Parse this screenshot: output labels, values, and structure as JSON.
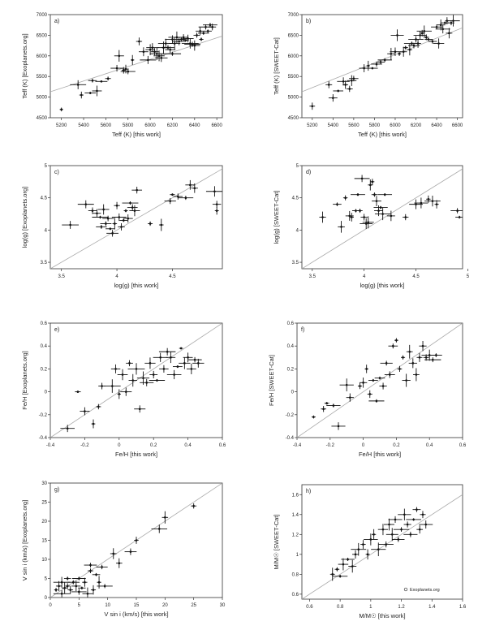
{
  "chart_data": [
    {
      "type": "scatter",
      "panel": "a)",
      "xlabel": "Teff (K) [this work]",
      "ylabel": "Teff (K) [Exoplanets.org]",
      "xlim": [
        5100,
        6650
      ],
      "ylim": [
        4500,
        7000
      ],
      "xticks": [
        5200,
        5400,
        5600,
        5800,
        6000,
        6200,
        6400,
        6600
      ],
      "yticks": [
        4500,
        5000,
        5500,
        6000,
        6500,
        7000
      ],
      "fit_line": [
        [
          5100,
          5130
        ],
        [
          6650,
          6480
        ]
      ],
      "points": [
        [
          5200,
          4700
        ],
        [
          5350,
          5300
        ],
        [
          5380,
          5050
        ],
        [
          5460,
          5100
        ],
        [
          5480,
          5400
        ],
        [
          5520,
          5150
        ],
        [
          5560,
          5380
        ],
        [
          5620,
          5450
        ],
        [
          5700,
          5700
        ],
        [
          5720,
          6000
        ],
        [
          5760,
          5650
        ],
        [
          5780,
          5680
        ],
        [
          5800,
          5620
        ],
        [
          5840,
          5900
        ],
        [
          5900,
          6350
        ],
        [
          5940,
          6100
        ],
        [
          5980,
          5900
        ],
        [
          6000,
          6150
        ],
        [
          6020,
          6200
        ],
        [
          6040,
          6100
        ],
        [
          6060,
          6050
        ],
        [
          6080,
          6000
        ],
        [
          6100,
          5950
        ],
        [
          6120,
          6200
        ],
        [
          6140,
          6300
        ],
        [
          6160,
          6200
        ],
        [
          6180,
          6150
        ],
        [
          6200,
          6050
        ],
        [
          6200,
          6400
        ],
        [
          6220,
          6300
        ],
        [
          6240,
          6450
        ],
        [
          6260,
          6350
        ],
        [
          6280,
          6400
        ],
        [
          6300,
          6450
        ],
        [
          6320,
          6380
        ],
        [
          6340,
          6420
        ],
        [
          6360,
          6300
        ],
        [
          6380,
          6280
        ],
        [
          6400,
          6250
        ],
        [
          6420,
          6500
        ],
        [
          6450,
          6600
        ],
        [
          6460,
          6400
        ],
        [
          6480,
          6550
        ],
        [
          6500,
          6700
        ],
        [
          6520,
          6600
        ],
        [
          6540,
          6750
        ],
        [
          6560,
          6700
        ]
      ]
    },
    {
      "type": "scatter",
      "panel": "b)",
      "xlabel": "Teff (K) [this work]",
      "ylabel": "Teff (K) [SWEET-Cat]",
      "xlim": [
        5100,
        6650
      ],
      "ylim": [
        4500,
        7000
      ],
      "xticks": [
        5200,
        5400,
        5600,
        5800,
        6000,
        6200,
        6400,
        6600
      ],
      "yticks": [
        4500,
        5000,
        5500,
        6000,
        6500,
        7000
      ],
      "fit_line": [
        [
          5100,
          5130
        ],
        [
          6650,
          6680
        ]
      ],
      "points": [
        [
          5200,
          4780
        ],
        [
          5360,
          5300
        ],
        [
          5400,
          4980
        ],
        [
          5450,
          5150
        ],
        [
          5500,
          5380
        ],
        [
          5520,
          5300
        ],
        [
          5560,
          5200
        ],
        [
          5580,
          5400
        ],
        [
          5600,
          5450
        ],
        [
          5700,
          5700
        ],
        [
          5740,
          5760
        ],
        [
          5780,
          5700
        ],
        [
          5820,
          5800
        ],
        [
          5860,
          5850
        ],
        [
          5900,
          5900
        ],
        [
          5960,
          6050
        ],
        [
          6000,
          6100
        ],
        [
          6020,
          6500
        ],
        [
          6040,
          6050
        ],
        [
          6080,
          6100
        ],
        [
          6100,
          6200
        ],
        [
          6140,
          6150
        ],
        [
          6160,
          6300
        ],
        [
          6180,
          6250
        ],
        [
          6200,
          6400
        ],
        [
          6220,
          6300
        ],
        [
          6240,
          6500
        ],
        [
          6260,
          6550
        ],
        [
          6280,
          6600
        ],
        [
          6300,
          6450
        ],
        [
          6320,
          6400
        ],
        [
          6360,
          6350
        ],
        [
          6400,
          6700
        ],
        [
          6420,
          6300
        ],
        [
          6440,
          6750
        ],
        [
          6460,
          6650
        ],
        [
          6480,
          6800
        ],
        [
          6500,
          6850
        ],
        [
          6520,
          6550
        ],
        [
          6540,
          6800
        ],
        [
          6560,
          6850
        ]
      ]
    },
    {
      "type": "scatter",
      "panel": "c)",
      "xlabel": "log(g) [this work]",
      "ylabel": "log(g) [Exoplanets.org]",
      "xlim": [
        3.4,
        4.95
      ],
      "ylim": [
        3.4,
        5.0
      ],
      "xticks": [
        3.5,
        4.0,
        4.5
      ],
      "yticks": [
        3.5,
        4.0,
        4.5,
        5.0
      ],
      "fit_line": [
        [
          3.4,
          3.4
        ],
        [
          4.95,
          4.95
        ]
      ],
      "points": [
        [
          3.58,
          4.08
        ],
        [
          3.72,
          4.4
        ],
        [
          3.78,
          4.3
        ],
        [
          3.82,
          4.26
        ],
        [
          3.85,
          4.2
        ],
        [
          3.86,
          4.05
        ],
        [
          3.88,
          4.32
        ],
        [
          3.9,
          4.1
        ],
        [
          3.92,
          4.18
        ],
        [
          3.94,
          4.02
        ],
        [
          3.96,
          3.95
        ],
        [
          3.98,
          4.1
        ],
        [
          4.0,
          4.38
        ],
        [
          4.02,
          4.2
        ],
        [
          4.04,
          4.05
        ],
        [
          4.06,
          4.15
        ],
        [
          4.08,
          4.3
        ],
        [
          4.1,
          4.18
        ],
        [
          4.12,
          4.42
        ],
        [
          4.14,
          4.35
        ],
        [
          4.16,
          4.3
        ],
        [
          4.18,
          4.62
        ],
        [
          4.3,
          4.1
        ],
        [
          4.4,
          4.08
        ],
        [
          4.48,
          4.45
        ],
        [
          4.5,
          4.55
        ],
        [
          4.55,
          4.52
        ],
        [
          4.62,
          4.5
        ],
        [
          4.66,
          4.7
        ],
        [
          4.7,
          4.65
        ],
        [
          4.88,
          4.6
        ],
        [
          4.9,
          4.4
        ],
        [
          4.9,
          4.3
        ]
      ]
    },
    {
      "type": "scatter",
      "panel": "d)",
      "xlabel": "log(g) [this work]",
      "ylabel": "log(g) [SWEET-Cat]",
      "xlim": [
        3.4,
        4.95
      ],
      "ylim": [
        3.4,
        5.0
      ],
      "xticks": [
        3.5,
        4.0,
        4.5,
        5.0
      ],
      "yticks": [
        3.5,
        4.0,
        4.5,
        5.0
      ],
      "fit_line": [
        [
          3.4,
          3.4
        ],
        [
          4.95,
          4.95
        ]
      ],
      "points": [
        [
          3.6,
          4.2
        ],
        [
          3.74,
          4.4
        ],
        [
          3.78,
          4.05
        ],
        [
          3.82,
          4.5
        ],
        [
          3.86,
          4.22
        ],
        [
          3.88,
          4.2
        ],
        [
          3.92,
          4.3
        ],
        [
          3.94,
          4.55
        ],
        [
          3.96,
          4.3
        ],
        [
          3.98,
          4.8
        ],
        [
          4.0,
          4.2
        ],
        [
          4.02,
          4.1
        ],
        [
          4.04,
          4.12
        ],
        [
          4.06,
          4.7
        ],
        [
          4.08,
          4.75
        ],
        [
          4.1,
          4.55
        ],
        [
          4.12,
          4.45
        ],
        [
          4.14,
          4.3
        ],
        [
          4.16,
          4.35
        ],
        [
          4.18,
          4.25
        ],
        [
          4.2,
          4.55
        ],
        [
          4.26,
          4.22
        ],
        [
          4.4,
          4.2
        ],
        [
          4.5,
          4.4
        ],
        [
          4.55,
          4.42
        ],
        [
          4.62,
          4.48
        ],
        [
          4.66,
          4.45
        ],
        [
          4.7,
          4.4
        ],
        [
          4.9,
          4.3
        ],
        [
          4.92,
          4.2
        ]
      ]
    },
    {
      "type": "scatter",
      "panel": "e)",
      "xlabel": "Fe/H [this work]",
      "ylabel": "Fe/H [Exoplanets.org]",
      "xlim": [
        -0.4,
        0.6
      ],
      "ylim": [
        -0.4,
        0.6
      ],
      "xticks": [
        -0.4,
        -0.2,
        0.0,
        0.2,
        0.4,
        0.6
      ],
      "yticks": [
        -0.4,
        -0.2,
        0.0,
        0.2,
        0.4,
        0.6
      ],
      "fit_line": [
        [
          -0.4,
          -0.4
        ],
        [
          0.6,
          0.6
        ]
      ],
      "points": [
        [
          -0.3,
          -0.32
        ],
        [
          -0.24,
          0.0
        ],
        [
          -0.2,
          -0.17
        ],
        [
          -0.15,
          -0.28
        ],
        [
          -0.12,
          -0.13
        ],
        [
          -0.1,
          0.05
        ],
        [
          -0.04,
          0.05
        ],
        [
          -0.02,
          0.2
        ],
        [
          0.0,
          -0.02
        ],
        [
          0.02,
          0.15
        ],
        [
          0.04,
          0.0
        ],
        [
          0.06,
          0.25
        ],
        [
          0.08,
          0.1
        ],
        [
          0.1,
          0.2
        ],
        [
          0.12,
          -0.15
        ],
        [
          0.14,
          0.12
        ],
        [
          0.16,
          0.08
        ],
        [
          0.18,
          0.25
        ],
        [
          0.2,
          0.15
        ],
        [
          0.22,
          0.1
        ],
        [
          0.24,
          0.3
        ],
        [
          0.26,
          0.2
        ],
        [
          0.28,
          0.35
        ],
        [
          0.3,
          0.3
        ],
        [
          0.32,
          0.15
        ],
        [
          0.34,
          0.22
        ],
        [
          0.36,
          0.38
        ],
        [
          0.38,
          0.25
        ],
        [
          0.4,
          0.3
        ],
        [
          0.42,
          0.2
        ],
        [
          0.44,
          0.28
        ],
        [
          0.46,
          0.25
        ]
      ]
    },
    {
      "type": "scatter",
      "panel": "f)",
      "xlabel": "Fe/H [this work]",
      "ylabel": "Fe/H [SWEET-Cat]",
      "xlim": [
        -0.4,
        0.6
      ],
      "ylim": [
        -0.4,
        0.6
      ],
      "xticks": [
        -0.4,
        -0.2,
        0.0,
        0.2,
        0.4,
        0.6
      ],
      "yticks": [
        -0.4,
        -0.2,
        0.0,
        0.2,
        0.4,
        0.6
      ],
      "fit_line": [
        [
          -0.4,
          -0.4
        ],
        [
          0.6,
          0.6
        ]
      ],
      "points": [
        [
          -0.3,
          -0.22
        ],
        [
          -0.24,
          -0.15
        ],
        [
          -0.22,
          -0.1
        ],
        [
          -0.18,
          -0.12
        ],
        [
          -0.15,
          -0.3
        ],
        [
          -0.1,
          0.06
        ],
        [
          -0.08,
          -0.05
        ],
        [
          -0.02,
          0.05
        ],
        [
          0.0,
          0.08
        ],
        [
          0.02,
          0.2
        ],
        [
          0.04,
          -0.02
        ],
        [
          0.06,
          0.1
        ],
        [
          0.08,
          -0.08
        ],
        [
          0.1,
          0.12
        ],
        [
          0.12,
          0.05
        ],
        [
          0.14,
          0.25
        ],
        [
          0.16,
          0.15
        ],
        [
          0.18,
          0.4
        ],
        [
          0.2,
          0.45
        ],
        [
          0.22,
          0.2
        ],
        [
          0.24,
          0.3
        ],
        [
          0.26,
          0.1
        ],
        [
          0.28,
          0.35
        ],
        [
          0.3,
          0.25
        ],
        [
          0.32,
          0.15
        ],
        [
          0.34,
          0.3
        ],
        [
          0.36,
          0.4
        ],
        [
          0.38,
          0.3
        ],
        [
          0.4,
          0.32
        ],
        [
          0.42,
          0.28
        ],
        [
          0.44,
          0.32
        ]
      ]
    },
    {
      "type": "scatter",
      "panel": "g)",
      "xlabel": "V sin i (km/s) [this work]",
      "ylabel": "V sin i (km/s) [Exoplanets.org]",
      "xlim": [
        0,
        30
      ],
      "ylim": [
        0,
        30
      ],
      "xticks": [
        0,
        5,
        10,
        15,
        20,
        25,
        30
      ],
      "yticks": [
        0,
        5,
        10,
        15,
        20,
        25,
        30
      ],
      "fit_line": [
        [
          0,
          0
        ],
        [
          30,
          30
        ]
      ],
      "points": [
        [
          1,
          2
        ],
        [
          1.5,
          3
        ],
        [
          2,
          1
        ],
        [
          2,
          4
        ],
        [
          2.5,
          2.5
        ],
        [
          3,
          3
        ],
        [
          3,
          5
        ],
        [
          3.5,
          2
        ],
        [
          4,
          4
        ],
        [
          4.5,
          3
        ],
        [
          5,
          5
        ],
        [
          5,
          1.5
        ],
        [
          5.5,
          2.5
        ],
        [
          6,
          4
        ],
        [
          6.5,
          1
        ],
        [
          7,
          7
        ],
        [
          7,
          8.5
        ],
        [
          7.5,
          2
        ],
        [
          8,
          6
        ],
        [
          8.5,
          4
        ],
        [
          9,
          8
        ],
        [
          9.5,
          3
        ],
        [
          11,
          11.5
        ],
        [
          12,
          9
        ],
        [
          14,
          12
        ],
        [
          15,
          15
        ],
        [
          19,
          18
        ],
        [
          20,
          21
        ],
        [
          25,
          24
        ]
      ]
    },
    {
      "type": "scatter",
      "panel": "h)",
      "xlabel": "M/M☉ [this work]",
      "ylabel": "M/M☉ [SWEET-Cat]",
      "xlim": [
        0.55,
        1.6
      ],
      "ylim": [
        0.55,
        1.7
      ],
      "xticks": [
        0.6,
        0.8,
        1.0,
        1.2,
        1.4,
        1.6
      ],
      "yticks": [
        0.6,
        0.8,
        1.0,
        1.2,
        1.4,
        1.6
      ],
      "fit_line": [
        [
          0.55,
          0.55
        ],
        [
          1.6,
          1.6
        ]
      ],
      "legend": {
        "label": "Exoplanets.org",
        "placement": "bottom-right"
      },
      "points": [
        [
          0.75,
          0.8
        ],
        [
          0.78,
          0.85
        ],
        [
          0.8,
          0.78
        ],
        [
          0.82,
          0.9
        ],
        [
          0.85,
          0.95
        ],
        [
          0.88,
          0.88
        ],
        [
          0.9,
          1.0
        ],
        [
          0.92,
          1.05
        ],
        [
          0.95,
          1.1
        ],
        [
          0.98,
          1.0
        ],
        [
          1.0,
          1.15
        ],
        [
          1.02,
          1.2
        ],
        [
          1.05,
          1.05
        ],
        [
          1.08,
          1.25
        ],
        [
          1.1,
          1.1
        ],
        [
          1.12,
          1.3
        ],
        [
          1.14,
          1.2
        ],
        [
          1.16,
          1.35
        ],
        [
          1.18,
          1.15
        ],
        [
          1.2,
          1.25
        ],
        [
          1.22,
          1.4
        ],
        [
          1.24,
          1.3
        ],
        [
          1.26,
          1.2
        ],
        [
          1.28,
          1.35
        ],
        [
          1.3,
          1.45
        ],
        [
          1.32,
          1.25
        ],
        [
          1.34,
          1.4
        ],
        [
          1.36,
          1.3
        ]
      ]
    }
  ]
}
